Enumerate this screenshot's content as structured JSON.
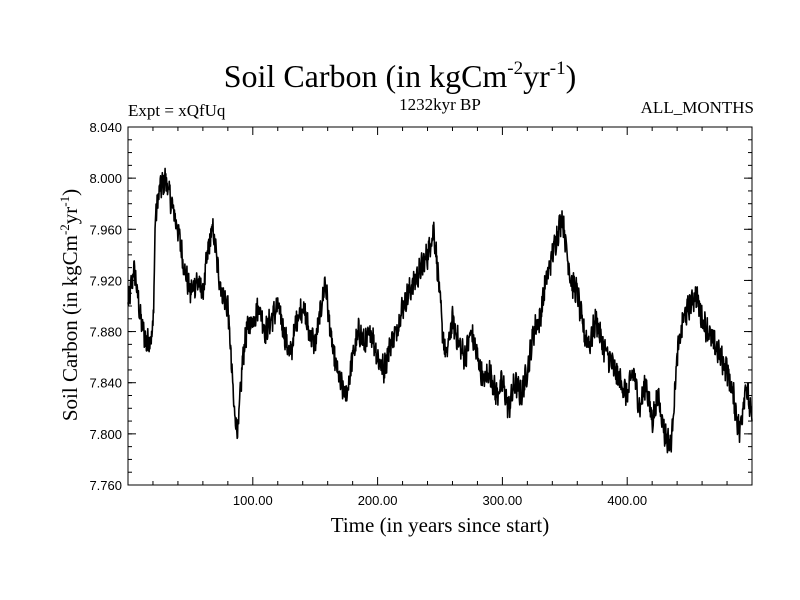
{
  "chart_data": {
    "type": "line",
    "title_main": "Soil Carbon (in kgCm",
    "title_sup1": "-2",
    "title_mid": "yr",
    "title_sup2": "-1",
    "title_end": ")",
    "subtitle_left": "Expt = xQfUq",
    "subtitle_center": "1232kyr BP",
    "subtitle_right": "ALL_MONTHS",
    "xlabel": "Time (in years since start)",
    "ylabel_main": "Soil Carbon (in kgCm",
    "ylabel_sup1": "-2",
    "ylabel_mid": "yr",
    "ylabel_sup2": "-1",
    "ylabel_end": ")",
    "xlim": [
      0,
      500
    ],
    "ylim": [
      7.76,
      8.04
    ],
    "x_ticks": [
      100,
      200,
      300,
      400
    ],
    "x_tick_labels": [
      "100.00",
      "200.00",
      "300.00",
      "400.00"
    ],
    "y_ticks": [
      7.76,
      7.8,
      7.84,
      7.88,
      7.92,
      7.96,
      8.0,
      8.04
    ],
    "y_tick_labels": [
      "7.760",
      "7.800",
      "7.840",
      "7.880",
      "7.920",
      "7.960",
      "8.000",
      "8.040"
    ],
    "series": [
      {
        "name": "Soil Carbon",
        "color": "#000000",
        "x": [
          0,
          5,
          10,
          15,
          20,
          22,
          25,
          30,
          35,
          40,
          45,
          50,
          55,
          60,
          65,
          68,
          72,
          75,
          80,
          85,
          88,
          92,
          95,
          100,
          105,
          110,
          115,
          120,
          125,
          130,
          135,
          140,
          145,
          150,
          155,
          158,
          162,
          165,
          170,
          175,
          180,
          185,
          190,
          195,
          200,
          205,
          210,
          215,
          220,
          225,
          230,
          235,
          240,
          245,
          248,
          252,
          255,
          260,
          265,
          270,
          275,
          280,
          285,
          290,
          295,
          300,
          305,
          310,
          315,
          320,
          325,
          330,
          335,
          340,
          345,
          348,
          352,
          355,
          360,
          365,
          370,
          375,
          380,
          385,
          390,
          395,
          400,
          405,
          410,
          415,
          420,
          425,
          430,
          435,
          440,
          445,
          450,
          455,
          460,
          465,
          470,
          475,
          480,
          485,
          490,
          495,
          500
        ],
        "values": [
          7.9,
          7.93,
          7.89,
          7.87,
          7.88,
          7.97,
          7.99,
          8.0,
          7.98,
          7.96,
          7.93,
          7.91,
          7.92,
          7.91,
          7.95,
          7.96,
          7.93,
          7.91,
          7.9,
          7.82,
          7.8,
          7.86,
          7.88,
          7.89,
          7.9,
          7.88,
          7.89,
          7.9,
          7.88,
          7.86,
          7.89,
          7.9,
          7.88,
          7.87,
          7.9,
          7.92,
          7.88,
          7.86,
          7.84,
          7.83,
          7.86,
          7.88,
          7.87,
          7.88,
          7.86,
          7.85,
          7.87,
          7.88,
          7.9,
          7.91,
          7.92,
          7.93,
          7.94,
          7.96,
          7.93,
          7.88,
          7.86,
          7.89,
          7.87,
          7.86,
          7.88,
          7.86,
          7.84,
          7.85,
          7.83,
          7.84,
          7.82,
          7.84,
          7.83,
          7.85,
          7.88,
          7.89,
          7.92,
          7.94,
          7.96,
          7.97,
          7.94,
          7.92,
          7.91,
          7.88,
          7.87,
          7.89,
          7.87,
          7.86,
          7.85,
          7.84,
          7.83,
          7.85,
          7.82,
          7.84,
          7.81,
          7.83,
          7.8,
          7.79,
          7.86,
          7.89,
          7.9,
          7.91,
          7.89,
          7.88,
          7.87,
          7.86,
          7.85,
          7.83,
          7.8,
          7.84,
          7.81
        ]
      }
    ]
  }
}
